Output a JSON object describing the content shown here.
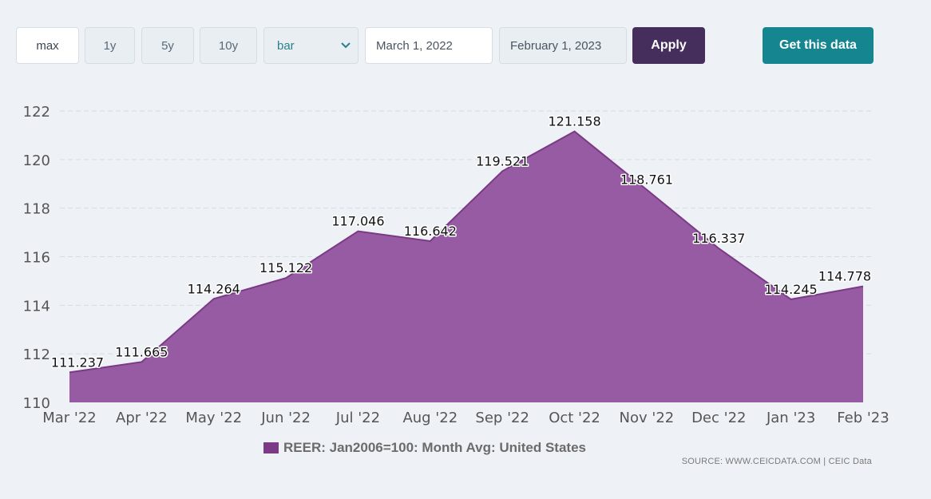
{
  "toolbar": {
    "ranges": [
      "max",
      "1y",
      "5y",
      "10y"
    ],
    "active_range": "max",
    "chart_type_value": "bar",
    "start_date": "March 1, 2022",
    "end_date": "February 1, 2023",
    "apply_label": "Apply",
    "get_data_label": "Get this data"
  },
  "colors": {
    "area_fill": "#8e4e9a",
    "area_line": "#7a3a85",
    "apply_bg": "#452e5b",
    "get_data_bg": "#15868f"
  },
  "legend": {
    "label": "REER: Jan2006=100: Month Avg: United States"
  },
  "source": {
    "prefix": "SOURCE: ",
    "site": "WWW.CEICDATA.COM",
    "separator": " | ",
    "brand": "CEIC Data"
  },
  "chart_data": {
    "type": "area",
    "categories": [
      "Mar '22",
      "Apr '22",
      "May '22",
      "Jun '22",
      "Jul '22",
      "Aug '22",
      "Sep '22",
      "Oct '22",
      "Nov '22",
      "Dec '22",
      "Jan '23",
      "Feb '23"
    ],
    "series": [
      {
        "name": "REER: Jan2006=100: Month Avg: United States",
        "values": [
          111.237,
          111.665,
          114.264,
          115.122,
          117.046,
          116.642,
          119.521,
          121.158,
          118.761,
          116.337,
          114.245,
          114.778
        ],
        "labels": [
          "111.237",
          "111.665",
          "114.264",
          "115.122",
          "117.046",
          "116.642",
          "119.521",
          "121.158",
          "118.761",
          "116.337",
          "114.245",
          "114.778"
        ]
      }
    ],
    "ylim": [
      110,
      122
    ],
    "yticks": [
      110,
      112,
      114,
      116,
      118,
      120,
      122
    ],
    "grid": true,
    "legend_position": "bottom-center"
  }
}
